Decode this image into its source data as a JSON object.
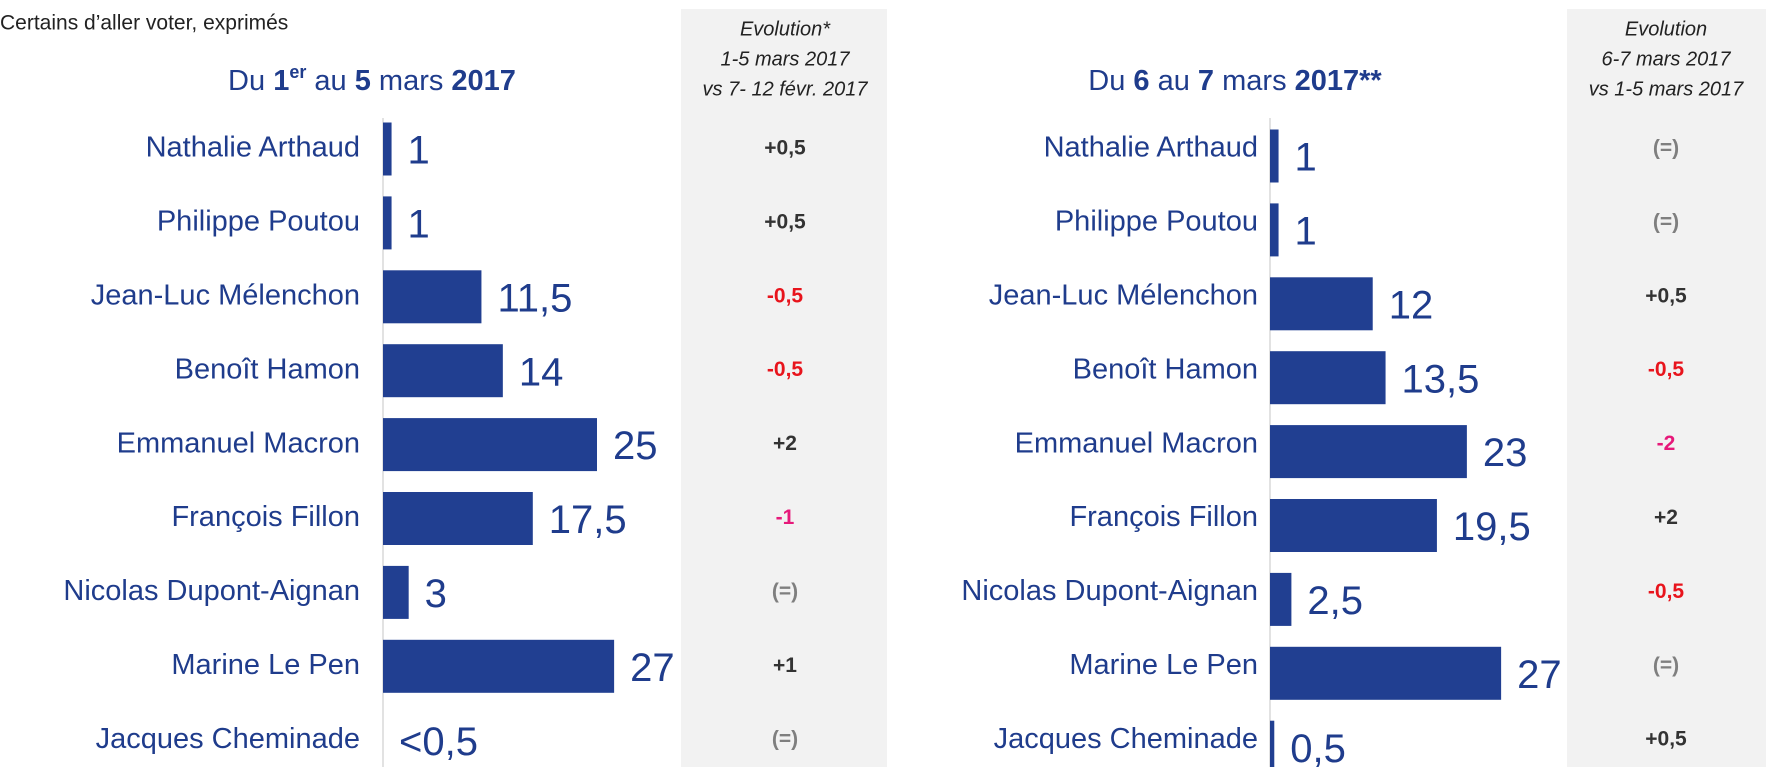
{
  "subtitle": "Certains d’aller voter, exprimés",
  "chart_data": [
    {
      "type": "bar",
      "title_parts": [
        "Du ",
        "1",
        "er",
        " au ",
        "5",
        " mars ",
        "2017"
      ],
      "categories": [
        "Nathalie Arthaud",
        "Philippe Poutou",
        "Jean-Luc Mélenchon",
        "Benoît Hamon",
        "Emmanuel Macron",
        "François Fillon",
        "Nicolas Dupont-Aignan",
        "Marine Le Pen",
        "Jacques Cheminade"
      ],
      "values": [
        1,
        1,
        11.5,
        14,
        25,
        17.5,
        3,
        27,
        null
      ],
      "value_labels": [
        "1",
        "1",
        "11,5",
        "14",
        "25",
        "17,5",
        "3",
        "27",
        "<0,5"
      ],
      "color": "#213f91",
      "evolution": {
        "header": [
          "Evolution*",
          "1-5 mars 2017",
          "vs 7- 12 févr. 2017"
        ],
        "values": [
          "+0,5",
          "+0,5",
          "-0,5",
          "-0,5",
          "+2",
          "-1",
          "(=)",
          "+1",
          "(=)"
        ],
        "colors": [
          "#333333",
          "#333333",
          "#e8141c",
          "#e8141c",
          "#333333",
          "#e6197a",
          "#7f7f7f",
          "#333333",
          "#7f7f7f"
        ]
      }
    },
    {
      "type": "bar",
      "title_parts": [
        "Du ",
        "6",
        " au ",
        "7",
        " mars ",
        "2017**"
      ],
      "categories": [
        "Nathalie Arthaud",
        "Philippe Poutou",
        "Jean-Luc Mélenchon",
        "Benoît Hamon",
        "Emmanuel Macron",
        "François Fillon",
        "Nicolas Dupont-Aignan",
        "Marine Le Pen",
        "Jacques Cheminade"
      ],
      "values": [
        1,
        1,
        12,
        13.5,
        23,
        19.5,
        2.5,
        27,
        0.5
      ],
      "value_labels": [
        "1",
        "1",
        "12",
        "13,5",
        "23",
        "19,5",
        "2,5",
        "27",
        "0,5"
      ],
      "color": "#213f91",
      "evolution": {
        "header": [
          "Evolution",
          "6-7 mars 2017",
          "vs 1-5 mars 2017"
        ],
        "values": [
          "(=)",
          "(=)",
          "+0,5",
          "-0,5",
          "-2",
          "+2",
          "-0,5",
          "(=)",
          "+0,5"
        ],
        "colors": [
          "#7f7f7f",
          "#7f7f7f",
          "#333333",
          "#e8141c",
          "#e6197a",
          "#333333",
          "#e8141c",
          "#7f7f7f",
          "#333333"
        ]
      }
    }
  ]
}
